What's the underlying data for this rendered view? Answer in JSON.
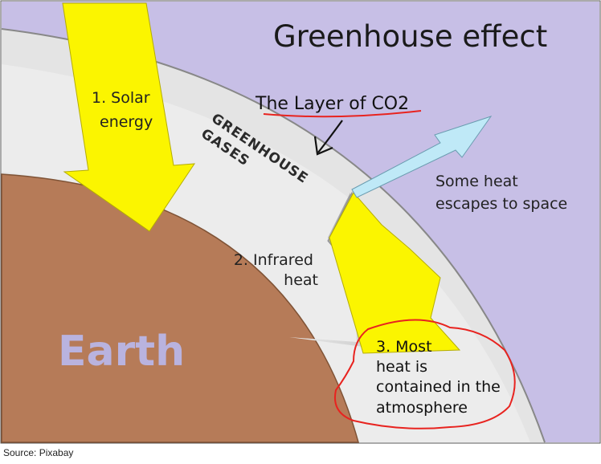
{
  "title": "Greenhouse effect",
  "labels": {
    "solar": [
      "1. Solar",
      "energy"
    ],
    "greenhouse_gases": [
      "GREENHOUSE",
      "GASES"
    ],
    "co2_layer": "The Layer of CO2",
    "escape": [
      "Some heat",
      "escapes to space"
    ],
    "infrared": [
      "2. Infrared",
      "heat"
    ],
    "contained": [
      "3. Most",
      "heat is",
      "contained in the",
      "atmosphere"
    ],
    "earth": "Earth"
  },
  "source": "Source:  Pixabay",
  "colors": {
    "space": "#c7bfe6",
    "atmosphere": "#e6e6e6",
    "earth": "#b67b58",
    "solar_arrow": "#fbf500",
    "infrared_arrow": "#b4b4b4",
    "escape_arrow": "#bfe9f7",
    "annotation_red": "#e8231f",
    "earth_text": "#b9b3df"
  }
}
